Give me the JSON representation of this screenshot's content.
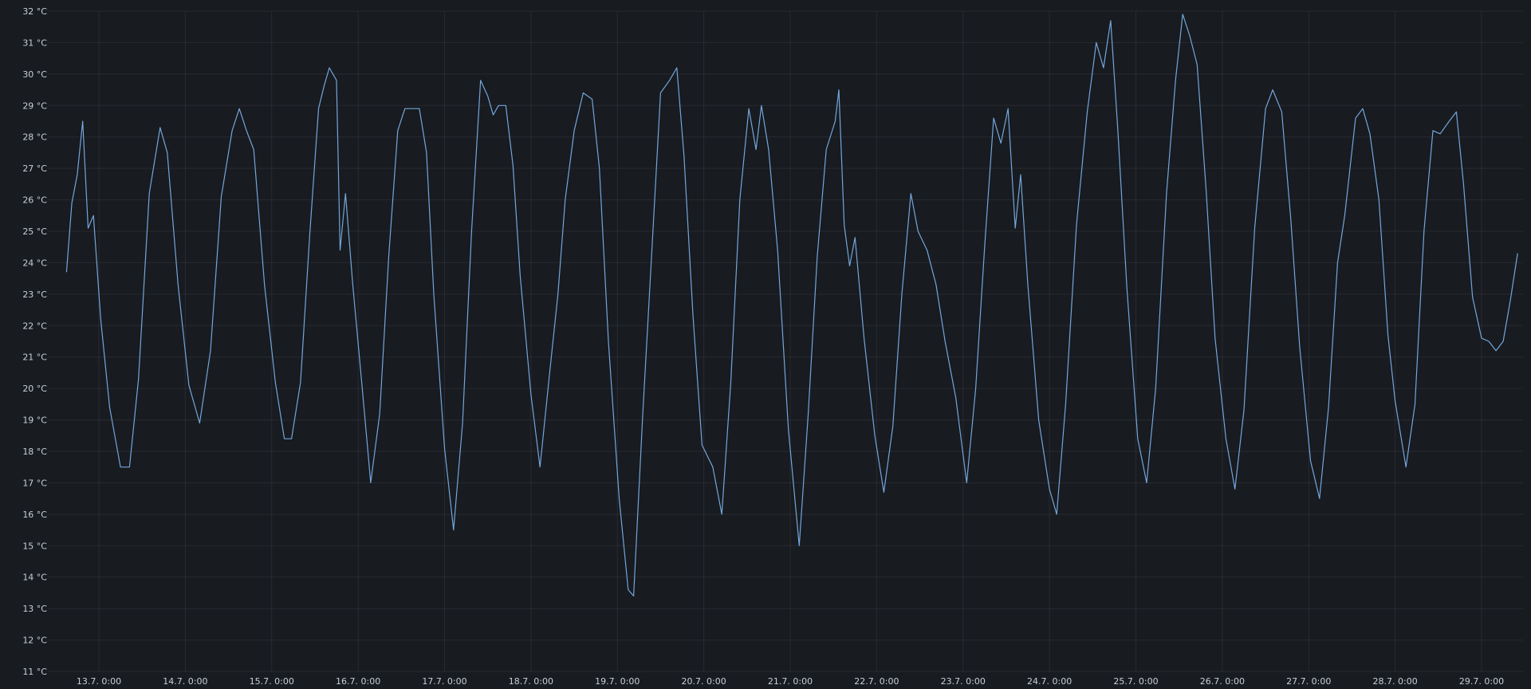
{
  "chart_data": {
    "type": "line",
    "title": "",
    "xlabel": "",
    "ylabel": "",
    "unit": "°C",
    "grid": true,
    "legend": "none",
    "ylim": [
      11,
      32
    ],
    "yticks": [
      "11 °C",
      "12 °C",
      "13 °C",
      "14 °C",
      "15 °C",
      "16 °C",
      "17 °C",
      "18 °C",
      "19 °C",
      "20 °C",
      "21 °C",
      "22 °C",
      "23 °C",
      "24 °C",
      "25 °C",
      "26 °C",
      "27 °C",
      "28 °C",
      "29 °C",
      "30 °C",
      "31 °C",
      "32 °C"
    ],
    "xticks": [
      "13.7. 0:00",
      "14.7. 0:00",
      "15.7. 0:00",
      "16.7. 0:00",
      "17.7. 0:00",
      "18.7. 0:00",
      "19.7. 0:00",
      "20.7. 0:00",
      "21.7. 0:00",
      "22.7. 0:00",
      "23.7. 0:00",
      "24.7. 0:00",
      "25.7. 0:00",
      "26.7. 0:00",
      "27.7. 0:00",
      "28.7. 0:00",
      "29.7. 0:00"
    ],
    "xlim": [
      "12.7. 15:00",
      "29.7. 10:00"
    ],
    "series": [
      {
        "color": "#73a6de",
        "points": [
          [
            "12.7. 15:00",
            23.7
          ],
          [
            "12.7. 16:30",
            25.9
          ],
          [
            "12.7. 18:00",
            26.8
          ],
          [
            "12.7. 19:30",
            28.5
          ],
          [
            "12.7. 21:00",
            25.1
          ],
          [
            "12.7. 22:30",
            25.5
          ],
          [
            "13.7. 0:30",
            22.2
          ],
          [
            "13.7. 3:00",
            19.4
          ],
          [
            "13.7. 6:00",
            17.5
          ],
          [
            "13.7. 8:30",
            17.5
          ],
          [
            "13.7. 11:00",
            20.3
          ],
          [
            "13.7. 14:00",
            26.2
          ],
          [
            "13.7. 17:00",
            28.3
          ],
          [
            "13.7. 19:00",
            27.5
          ],
          [
            "13.7. 22:00",
            23.3
          ],
          [
            "14.7. 1:00",
            20.1
          ],
          [
            "14.7. 4:00",
            18.9
          ],
          [
            "14.7. 7:00",
            21.2
          ],
          [
            "14.7. 10:00",
            26.1
          ],
          [
            "14.7. 13:00",
            28.2
          ],
          [
            "14.7. 15:00",
            28.9
          ],
          [
            "14.7. 17:00",
            28.2
          ],
          [
            "14.7. 19:00",
            27.6
          ],
          [
            "14.7. 22:00",
            23.3
          ],
          [
            "15.7. 1:00",
            20.2
          ],
          [
            "15.7. 3:30",
            18.4
          ],
          [
            "15.7. 5:30",
            18.4
          ],
          [
            "15.7. 8:00",
            20.2
          ],
          [
            "15.7. 10:30",
            24.8
          ],
          [
            "15.7. 13:00",
            28.9
          ],
          [
            "15.7. 14:30",
            29.6
          ],
          [
            "15.7. 16:00",
            30.2
          ],
          [
            "15.7. 18:00",
            29.8
          ],
          [
            "15.7. 19:00",
            24.4
          ],
          [
            "15.7. 20:30",
            26.2
          ],
          [
            "15.7. 22:30",
            23.3
          ],
          [
            "16.7. 1:00",
            20.2
          ],
          [
            "16.7. 3:30",
            17.0
          ],
          [
            "16.7. 6:00",
            19.2
          ],
          [
            "16.7. 8:30",
            24.2
          ],
          [
            "16.7. 11:00",
            28.2
          ],
          [
            "16.7. 13:00",
            28.9
          ],
          [
            "16.7. 17:00",
            28.9
          ],
          [
            "16.7. 19:00",
            27.5
          ],
          [
            "16.7. 21:00",
            23.0
          ],
          [
            "17.7. 0:00",
            18.1
          ],
          [
            "17.7. 2:30",
            15.5
          ],
          [
            "17.7. 5:00",
            18.9
          ],
          [
            "17.7. 7:30",
            25.0
          ],
          [
            "17.7. 10:00",
            29.8
          ],
          [
            "17.7. 12:00",
            29.3
          ],
          [
            "17.7. 13:30",
            28.7
          ],
          [
            "17.7. 15:00",
            29.0
          ],
          [
            "17.7. 17:00",
            29.0
          ],
          [
            "17.7. 19:00",
            27.1
          ],
          [
            "17.7. 21:00",
            23.6
          ],
          [
            "18.7. 0:00",
            19.8
          ],
          [
            "18.7. 2:30",
            17.5
          ],
          [
            "18.7. 5:00",
            20.3
          ],
          [
            "18.7. 7:30",
            23.0
          ],
          [
            "18.7. 9:30",
            26.0
          ],
          [
            "18.7. 12:00",
            28.2
          ],
          [
            "18.7. 14:30",
            29.4
          ],
          [
            "18.7. 17:00",
            29.2
          ],
          [
            "18.7. 19:00",
            27.0
          ],
          [
            "18.7. 21:30",
            21.5
          ],
          [
            "19.7. 0:30",
            16.5
          ],
          [
            "19.7. 3:00",
            13.6
          ],
          [
            "19.7. 4:30",
            13.4
          ],
          [
            "19.7. 7:00",
            19.1
          ],
          [
            "19.7. 9:30",
            24.2
          ],
          [
            "19.7. 12:00",
            29.4
          ],
          [
            "19.7. 14:30",
            29.8
          ],
          [
            "19.7. 16:30",
            30.2
          ],
          [
            "19.7. 18:30",
            27.4
          ],
          [
            "19.7. 21:00",
            22.3
          ],
          [
            "19.7. 23:30",
            18.2
          ],
          [
            "20.7. 2:30",
            17.5
          ],
          [
            "20.7. 5:00",
            16.0
          ],
          [
            "20.7. 7:30",
            20.2
          ],
          [
            "20.7. 10:00",
            26.0
          ],
          [
            "20.7. 12:30",
            28.9
          ],
          [
            "20.7. 14:30",
            27.6
          ],
          [
            "20.7. 16:00",
            29.0
          ],
          [
            "20.7. 18:00",
            27.6
          ],
          [
            "20.7. 20:30",
            24.4
          ],
          [
            "20.7. 23:30",
            18.7
          ],
          [
            "21.7. 2:30",
            15.0
          ],
          [
            "21.7. 5:00",
            19.2
          ],
          [
            "21.7. 7:30",
            24.2
          ],
          [
            "21.7. 10:00",
            27.6
          ],
          [
            "21.7. 12:30",
            28.5
          ],
          [
            "21.7. 13:30",
            29.5
          ],
          [
            "21.7. 15:00",
            25.2
          ],
          [
            "21.7. 16:30",
            23.9
          ],
          [
            "21.7. 18:00",
            24.8
          ],
          [
            "21.7. 20:30",
            21.6
          ],
          [
            "21.7. 23:30",
            18.5
          ],
          [
            "22.7. 2:00",
            16.7
          ],
          [
            "22.7. 4:30",
            18.8
          ],
          [
            "22.7. 7:00",
            23.0
          ],
          [
            "22.7. 9:30",
            26.2
          ],
          [
            "22.7. 11:30",
            25.0
          ],
          [
            "22.7. 14:00",
            24.4
          ],
          [
            "22.7. 16:30",
            23.3
          ],
          [
            "22.7. 19:00",
            21.5
          ],
          [
            "22.7. 22:00",
            19.7
          ],
          [
            "23.7. 1:00",
            17.0
          ],
          [
            "23.7. 3:30",
            20.0
          ],
          [
            "23.7. 6:00",
            24.5
          ],
          [
            "23.7. 8:30",
            28.6
          ],
          [
            "23.7. 10:30",
            27.8
          ],
          [
            "23.7. 12:30",
            28.9
          ],
          [
            "23.7. 14:30",
            25.1
          ],
          [
            "23.7. 16:00",
            26.8
          ],
          [
            "23.7. 18:00",
            23.3
          ],
          [
            "23.7. 21:00",
            19.0
          ],
          [
            "24.7. 0:00",
            16.8
          ],
          [
            "24.7. 2:00",
            16.0
          ],
          [
            "24.7. 4:30",
            19.5
          ],
          [
            "24.7. 7:30",
            25.2
          ],
          [
            "24.7. 10:30",
            28.8
          ],
          [
            "24.7. 13:00",
            31.0
          ],
          [
            "24.7. 15:00",
            30.2
          ],
          [
            "24.7. 17:00",
            31.7
          ],
          [
            "24.7. 19:00",
            28.2
          ],
          [
            "24.7. 21:30",
            23.2
          ],
          [
            "25.7. 0:30",
            18.4
          ],
          [
            "25.7. 3:00",
            17.0
          ],
          [
            "25.7. 5:30",
            20.0
          ],
          [
            "25.7. 8:30",
            26.2
          ],
          [
            "25.7. 11:00",
            29.8
          ],
          [
            "25.7. 13:00",
            31.9
          ],
          [
            "25.7. 15:00",
            31.2
          ],
          [
            "25.7. 17:00",
            30.3
          ],
          [
            "25.7. 19:30",
            26.3
          ],
          [
            "25.7. 22:00",
            21.6
          ],
          [
            "26.7. 1:00",
            18.4
          ],
          [
            "26.7. 3:30",
            16.8
          ],
          [
            "26.7. 6:00",
            19.3
          ],
          [
            "26.7. 9:00",
            25.1
          ],
          [
            "26.7. 12:00",
            28.9
          ],
          [
            "26.7. 14:00",
            29.5
          ],
          [
            "26.7. 16:30",
            28.8
          ],
          [
            "26.7. 19:00",
            25.4
          ],
          [
            "26.7. 21:30",
            21.3
          ],
          [
            "27.7. 0:30",
            17.7
          ],
          [
            "27.7. 3:00",
            16.5
          ],
          [
            "27.7. 5:30",
            19.4
          ],
          [
            "27.7. 8:00",
            24.0
          ],
          [
            "27.7. 10:00",
            25.5
          ],
          [
            "27.7. 13:00",
            28.6
          ],
          [
            "27.7. 15:00",
            28.9
          ],
          [
            "27.7. 17:00",
            28.1
          ],
          [
            "27.7. 19:30",
            26.0
          ],
          [
            "27.7. 22:00",
            21.7
          ],
          [
            "28.7. 0:00",
            19.6
          ],
          [
            "28.7. 3:00",
            17.5
          ],
          [
            "28.7. 5:30",
            19.5
          ],
          [
            "28.7. 8:00",
            25.0
          ],
          [
            "28.7. 10:30",
            28.2
          ],
          [
            "28.7. 12:30",
            28.1
          ],
          [
            "28.7. 15:00",
            28.5
          ],
          [
            "28.7. 17:00",
            28.8
          ],
          [
            "28.7. 19:00",
            26.5
          ],
          [
            "28.7. 21:30",
            22.9
          ],
          [
            "29.7. 0:00",
            21.6
          ],
          [
            "29.7. 2:00",
            21.5
          ],
          [
            "29.7. 4:00",
            21.2
          ],
          [
            "29.7. 6:00",
            21.5
          ],
          [
            "29.7. 8:00",
            22.8
          ],
          [
            "29.7. 10:00",
            24.3
          ]
        ]
      }
    ]
  }
}
